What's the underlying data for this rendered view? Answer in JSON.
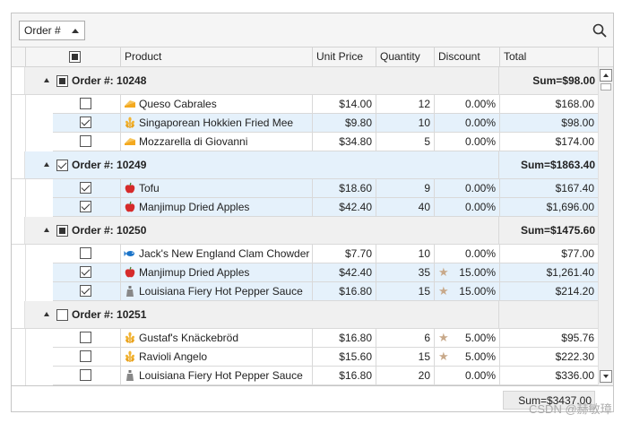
{
  "toolbar": {
    "group_button_label": "Order #"
  },
  "columns": {
    "product": "Product",
    "unit_price": "Unit Price",
    "quantity": "Quantity",
    "discount": "Discount",
    "total": "Total"
  },
  "groups": [
    {
      "title": "Order #: 10248",
      "sum": "Sum=$98.00",
      "check": "partial",
      "rows": [
        {
          "checked": false,
          "icon": "cheese-icon",
          "product": "Queso Cabrales",
          "price": "$14.00",
          "qty": "12",
          "star": false,
          "discount": "0.00%",
          "total": "$168.00"
        },
        {
          "checked": true,
          "icon": "grain-icon",
          "product": "Singaporean Hokkien Fried Mee",
          "price": "$9.80",
          "qty": "10",
          "star": false,
          "discount": "0.00%",
          "total": "$98.00"
        },
        {
          "checked": false,
          "icon": "cheese-icon",
          "product": "Mozzarella di Giovanni",
          "price": "$34.80",
          "qty": "5",
          "star": false,
          "discount": "0.00%",
          "total": "$174.00"
        }
      ]
    },
    {
      "title": "Order #: 10249",
      "sum": "Sum=$1863.40",
      "check": "full",
      "rows": [
        {
          "checked": true,
          "icon": "apple-icon",
          "product": "Tofu",
          "price": "$18.60",
          "qty": "9",
          "star": false,
          "discount": "0.00%",
          "total": "$167.40"
        },
        {
          "checked": true,
          "icon": "apple-icon",
          "product": "Manjimup Dried Apples",
          "price": "$42.40",
          "qty": "40",
          "star": false,
          "discount": "0.00%",
          "total": "$1,696.00"
        }
      ]
    },
    {
      "title": "Order #: 10250",
      "sum": "Sum=$1475.60",
      "check": "partial",
      "rows": [
        {
          "checked": false,
          "icon": "fish-icon",
          "product": "Jack's New England Clam Chowder",
          "price": "$7.70",
          "qty": "10",
          "star": false,
          "discount": "0.00%",
          "total": "$77.00"
        },
        {
          "checked": true,
          "icon": "apple-icon",
          "product": "Manjimup Dried Apples",
          "price": "$42.40",
          "qty": "35",
          "star": true,
          "discount": "15.00%",
          "total": "$1,261.40"
        },
        {
          "checked": true,
          "icon": "bottle-icon",
          "product": "Louisiana Fiery Hot Pepper Sauce",
          "price": "$16.80",
          "qty": "15",
          "star": true,
          "discount": "15.00%",
          "total": "$214.20"
        }
      ]
    },
    {
      "title": "Order #: 10251",
      "sum": "",
      "check": "none",
      "rows": [
        {
          "checked": false,
          "icon": "grain-icon",
          "product": "Gustaf's Knäckebröd",
          "price": "$16.80",
          "qty": "6",
          "star": true,
          "discount": "5.00%",
          "total": "$95.76"
        },
        {
          "checked": false,
          "icon": "grain-icon",
          "product": "Ravioli Angelo",
          "price": "$15.60",
          "qty": "15",
          "star": true,
          "discount": "5.00%",
          "total": "$222.30"
        },
        {
          "checked": false,
          "icon": "bottle-icon",
          "product": "Louisiana Fiery Hot Pepper Sauce",
          "price": "$16.80",
          "qty": "20",
          "star": false,
          "discount": "0.00%",
          "total": "$336.00"
        }
      ]
    }
  ],
  "footer": {
    "total_sum": "Sum=$3437.00"
  },
  "watermark": "CSDN @赫敏璋",
  "colors": {
    "selected_row": "#e5f1fb",
    "group_row": "#f0f0f0",
    "star": "#c8a98a"
  }
}
